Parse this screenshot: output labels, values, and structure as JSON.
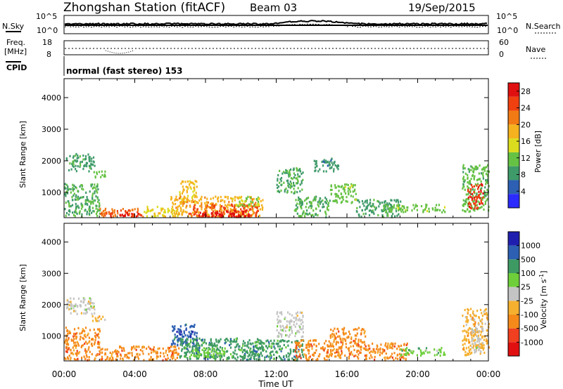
{
  "header": {
    "station": "Zhongshan Station (fitACF)",
    "beam": "Beam 03",
    "date": "19/Sep/2015"
  },
  "noise_panel": {
    "left_label": "N.Sky",
    "left_ticks": [
      "10^5",
      "10^0"
    ],
    "right_label": "N.Search",
    "right_ticks": [
      "10^5",
      "10^0"
    ]
  },
  "freq_panel": {
    "left_label_1": "Freq.",
    "left_label_2": "[MHz]",
    "left_ticks": [
      "18",
      "8"
    ],
    "right_label": "Nave",
    "right_ticks": [
      "60",
      "0"
    ],
    "cpid_label": "CPID",
    "cpid_text": "normal (fast stereo) 153"
  },
  "colors": {
    "power": [
      "#2b2bff",
      "#2d5fb2",
      "#3f9a6a",
      "#66c244",
      "#dcdc1e",
      "#f5b21e",
      "#f27a14",
      "#f04010",
      "#e01010"
    ],
    "velocity": [
      "#e01010",
      "#f04020",
      "#f58a1a",
      "#f5b030",
      "#c4c4c4",
      "#6fcf3a",
      "#3e9a63",
      "#2d5fb2",
      "#1f1faf"
    ]
  },
  "chart_data": [
    {
      "type": "heatmap",
      "quantity": "Power",
      "ylabel": "Slant Range [km]",
      "yticks": [
        1000,
        2000,
        3000,
        4000
      ],
      "ylim": [
        200,
        4600
      ],
      "xlim_hours": [
        0,
        24
      ],
      "xticks": [
        "00:00",
        "04:00",
        "08:00",
        "12:00",
        "16:00",
        "20:00",
        "00:00"
      ],
      "colorbar_label": "Power [dB]",
      "colorbar_ticks": [
        4,
        8,
        12,
        16,
        20,
        24,
        28
      ],
      "colorbar_range": [
        0,
        30
      ],
      "regions": [
        {
          "t": [
            0.1,
            1.7
          ],
          "r": [
            1700,
            2250
          ],
          "v": 9
        },
        {
          "t": [
            1.5,
            2.3
          ],
          "r": [
            1500,
            1700
          ],
          "v": 11
        },
        {
          "t": [
            0.0,
            2.0
          ],
          "r": [
            250,
            1300
          ],
          "v": 10
        },
        {
          "t": [
            2.0,
            4.5
          ],
          "r": [
            250,
            520
          ],
          "v": 23
        },
        {
          "t": [
            2.5,
            4.2
          ],
          "r": [
            250,
            380
          ],
          "v": 27
        },
        {
          "t": [
            4.5,
            6.5
          ],
          "r": [
            250,
            600
          ],
          "v": 16
        },
        {
          "t": [
            6.5,
            7.5
          ],
          "r": [
            700,
            1400
          ],
          "v": 17
        },
        {
          "t": [
            6.0,
            11.2
          ],
          "r": [
            250,
            900
          ],
          "v": 19
        },
        {
          "t": [
            7.0,
            11.0
          ],
          "r": [
            250,
            650
          ],
          "v": 24
        },
        {
          "t": [
            7.5,
            10.5
          ],
          "r": [
            250,
            450
          ],
          "v": 29
        },
        {
          "t": [
            9.5,
            11.0
          ],
          "r": [
            600,
            900
          ],
          "v": 13
        },
        {
          "t": [
            12.0,
            13.5
          ],
          "r": [
            1000,
            1800
          ],
          "v": 10
        },
        {
          "t": [
            13.0,
            15.0
          ],
          "r": [
            250,
            900
          ],
          "v": 10
        },
        {
          "t": [
            14.0,
            15.5
          ],
          "r": [
            1700,
            2100
          ],
          "v": 8
        },
        {
          "t": [
            15.0,
            16.5
          ],
          "r": [
            700,
            1300
          ],
          "v": 12
        },
        {
          "t": [
            16.5,
            19.0
          ],
          "r": [
            250,
            800
          ],
          "v": 9
        },
        {
          "t": [
            18.0,
            21.5
          ],
          "r": [
            400,
            650
          ],
          "v": 12
        },
        {
          "t": [
            22.5,
            24.0
          ],
          "r": [
            400,
            1900
          ],
          "v": 11
        },
        {
          "t": [
            22.8,
            23.7
          ],
          "r": [
            500,
            1300
          ],
          "v": 26
        }
      ]
    },
    {
      "type": "heatmap",
      "quantity": "Velocity",
      "ylabel": "Slant Range [km]",
      "yticks": [
        1000,
        2000,
        3000,
        4000
      ],
      "ylim": [
        200,
        4600
      ],
      "xlim_hours": [
        0,
        24
      ],
      "xticks": [
        "00:00",
        "04:00",
        "08:00",
        "12:00",
        "16:00",
        "20:00",
        "00:00"
      ],
      "xlabel": "Time UT",
      "colorbar_label": "Velocity [m s-1]",
      "colorbar_ticks": [
        -1000,
        -500,
        -100,
        -25,
        25,
        100,
        500,
        1000
      ],
      "regions": [
        {
          "t": [
            0.1,
            1.7
          ],
          "r": [
            1700,
            2250
          ],
          "v": 4
        },
        {
          "t": [
            0.0,
            2.0
          ],
          "r": [
            250,
            1300
          ],
          "v": 2
        },
        {
          "t": [
            1.5,
            2.3
          ],
          "r": [
            1500,
            1700
          ],
          "v": 3
        },
        {
          "t": [
            2.0,
            6.5
          ],
          "r": [
            250,
            700
          ],
          "v": 2
        },
        {
          "t": [
            6.0,
            7.5
          ],
          "r": [
            700,
            1400
          ],
          "v": 7
        },
        {
          "t": [
            6.5,
            11.2
          ],
          "r": [
            250,
            950
          ],
          "v": 6
        },
        {
          "t": [
            7.0,
            9.5
          ],
          "r": [
            350,
            650
          ],
          "v": 5
        },
        {
          "t": [
            10.0,
            13.5
          ],
          "r": [
            250,
            900
          ],
          "v": 6
        },
        {
          "t": [
            12.0,
            13.5
          ],
          "r": [
            1000,
            1800
          ],
          "v": 4
        },
        {
          "t": [
            13.0,
            15.0
          ],
          "r": [
            250,
            900
          ],
          "v": 2
        },
        {
          "t": [
            15.0,
            17.0
          ],
          "r": [
            300,
            1300
          ],
          "v": 2
        },
        {
          "t": [
            17.0,
            19.5
          ],
          "r": [
            250,
            800
          ],
          "v": 2
        },
        {
          "t": [
            19.0,
            21.5
          ],
          "r": [
            400,
            650
          ],
          "v": 5
        },
        {
          "t": [
            22.5,
            24.0
          ],
          "r": [
            400,
            1900
          ],
          "v": 3
        },
        {
          "t": [
            23.0,
            23.7
          ],
          "r": [
            500,
            1300
          ],
          "v": 4
        }
      ]
    }
  ]
}
